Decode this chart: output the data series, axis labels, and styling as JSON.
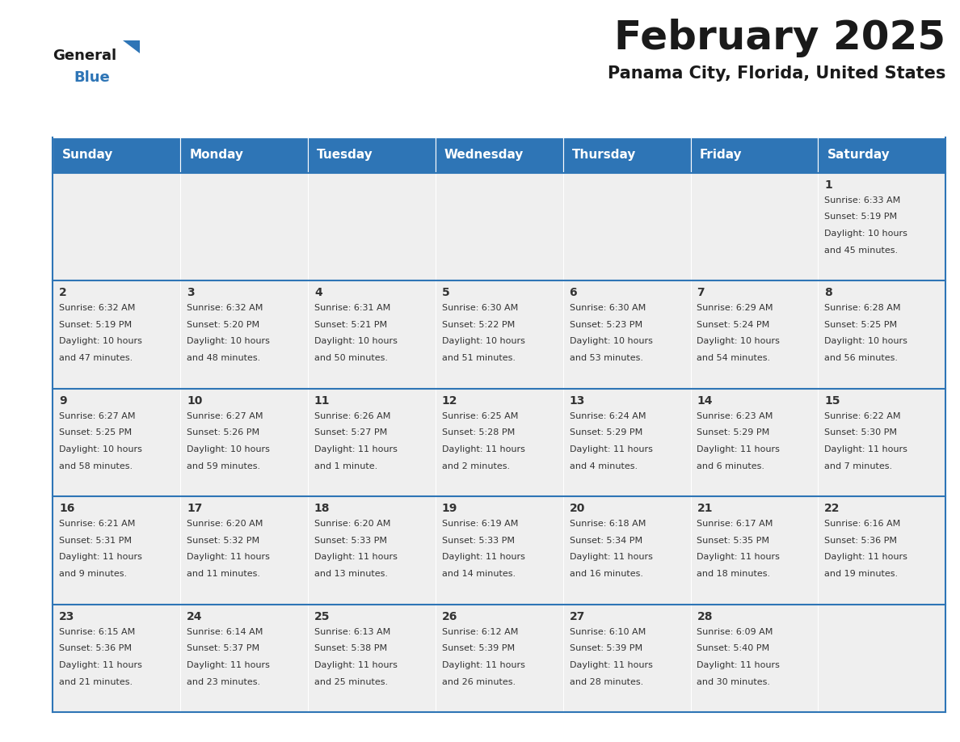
{
  "title": "February 2025",
  "subtitle": "Panama City, Florida, United States",
  "header_color": "#2E75B6",
  "header_text_color": "#FFFFFF",
  "cell_bg_color": "#EFEFEF",
  "border_color": "#2E75B6",
  "text_color": "#333333",
  "day_headers": [
    "Sunday",
    "Monday",
    "Tuesday",
    "Wednesday",
    "Thursday",
    "Friday",
    "Saturday"
  ],
  "days": [
    {
      "day": 1,
      "col": 6,
      "row": 0,
      "sunrise": "6:33 AM",
      "sunset": "5:19 PM",
      "daylight": "10 hours and 45 minutes."
    },
    {
      "day": 2,
      "col": 0,
      "row": 1,
      "sunrise": "6:32 AM",
      "sunset": "5:19 PM",
      "daylight": "10 hours and 47 minutes."
    },
    {
      "day": 3,
      "col": 1,
      "row": 1,
      "sunrise": "6:32 AM",
      "sunset": "5:20 PM",
      "daylight": "10 hours and 48 minutes."
    },
    {
      "day": 4,
      "col": 2,
      "row": 1,
      "sunrise": "6:31 AM",
      "sunset": "5:21 PM",
      "daylight": "10 hours and 50 minutes."
    },
    {
      "day": 5,
      "col": 3,
      "row": 1,
      "sunrise": "6:30 AM",
      "sunset": "5:22 PM",
      "daylight": "10 hours and 51 minutes."
    },
    {
      "day": 6,
      "col": 4,
      "row": 1,
      "sunrise": "6:30 AM",
      "sunset": "5:23 PM",
      "daylight": "10 hours and 53 minutes."
    },
    {
      "day": 7,
      "col": 5,
      "row": 1,
      "sunrise": "6:29 AM",
      "sunset": "5:24 PM",
      "daylight": "10 hours and 54 minutes."
    },
    {
      "day": 8,
      "col": 6,
      "row": 1,
      "sunrise": "6:28 AM",
      "sunset": "5:25 PM",
      "daylight": "10 hours and 56 minutes."
    },
    {
      "day": 9,
      "col": 0,
      "row": 2,
      "sunrise": "6:27 AM",
      "sunset": "5:25 PM",
      "daylight": "10 hours and 58 minutes."
    },
    {
      "day": 10,
      "col": 1,
      "row": 2,
      "sunrise": "6:27 AM",
      "sunset": "5:26 PM",
      "daylight": "10 hours and 59 minutes."
    },
    {
      "day": 11,
      "col": 2,
      "row": 2,
      "sunrise": "6:26 AM",
      "sunset": "5:27 PM",
      "daylight": "11 hours and 1 minute."
    },
    {
      "day": 12,
      "col": 3,
      "row": 2,
      "sunrise": "6:25 AM",
      "sunset": "5:28 PM",
      "daylight": "11 hours and 2 minutes."
    },
    {
      "day": 13,
      "col": 4,
      "row": 2,
      "sunrise": "6:24 AM",
      "sunset": "5:29 PM",
      "daylight": "11 hours and 4 minutes."
    },
    {
      "day": 14,
      "col": 5,
      "row": 2,
      "sunrise": "6:23 AM",
      "sunset": "5:29 PM",
      "daylight": "11 hours and 6 minutes."
    },
    {
      "day": 15,
      "col": 6,
      "row": 2,
      "sunrise": "6:22 AM",
      "sunset": "5:30 PM",
      "daylight": "11 hours and 7 minutes."
    },
    {
      "day": 16,
      "col": 0,
      "row": 3,
      "sunrise": "6:21 AM",
      "sunset": "5:31 PM",
      "daylight": "11 hours and 9 minutes."
    },
    {
      "day": 17,
      "col": 1,
      "row": 3,
      "sunrise": "6:20 AM",
      "sunset": "5:32 PM",
      "daylight": "11 hours and 11 minutes."
    },
    {
      "day": 18,
      "col": 2,
      "row": 3,
      "sunrise": "6:20 AM",
      "sunset": "5:33 PM",
      "daylight": "11 hours and 13 minutes."
    },
    {
      "day": 19,
      "col": 3,
      "row": 3,
      "sunrise": "6:19 AM",
      "sunset": "5:33 PM",
      "daylight": "11 hours and 14 minutes."
    },
    {
      "day": 20,
      "col": 4,
      "row": 3,
      "sunrise": "6:18 AM",
      "sunset": "5:34 PM",
      "daylight": "11 hours and 16 minutes."
    },
    {
      "day": 21,
      "col": 5,
      "row": 3,
      "sunrise": "6:17 AM",
      "sunset": "5:35 PM",
      "daylight": "11 hours and 18 minutes."
    },
    {
      "day": 22,
      "col": 6,
      "row": 3,
      "sunrise": "6:16 AM",
      "sunset": "5:36 PM",
      "daylight": "11 hours and 19 minutes."
    },
    {
      "day": 23,
      "col": 0,
      "row": 4,
      "sunrise": "6:15 AM",
      "sunset": "5:36 PM",
      "daylight": "11 hours and 21 minutes."
    },
    {
      "day": 24,
      "col": 1,
      "row": 4,
      "sunrise": "6:14 AM",
      "sunset": "5:37 PM",
      "daylight": "11 hours and 23 minutes."
    },
    {
      "day": 25,
      "col": 2,
      "row": 4,
      "sunrise": "6:13 AM",
      "sunset": "5:38 PM",
      "daylight": "11 hours and 25 minutes."
    },
    {
      "day": 26,
      "col": 3,
      "row": 4,
      "sunrise": "6:12 AM",
      "sunset": "5:39 PM",
      "daylight": "11 hours and 26 minutes."
    },
    {
      "day": 27,
      "col": 4,
      "row": 4,
      "sunrise": "6:10 AM",
      "sunset": "5:39 PM",
      "daylight": "11 hours and 28 minutes."
    },
    {
      "day": 28,
      "col": 5,
      "row": 4,
      "sunrise": "6:09 AM",
      "sunset": "5:40 PM",
      "daylight": "11 hours and 30 minutes."
    }
  ],
  "num_rows": 5,
  "num_cols": 7,
  "logo_general_color": "#1a1a1a",
  "logo_blue_color": "#2E75B6",
  "logo_triangle_color": "#2E75B6",
  "title_fontsize": 36,
  "subtitle_fontsize": 15,
  "header_fontsize": 11,
  "day_num_fontsize": 10,
  "cell_text_fontsize": 8
}
